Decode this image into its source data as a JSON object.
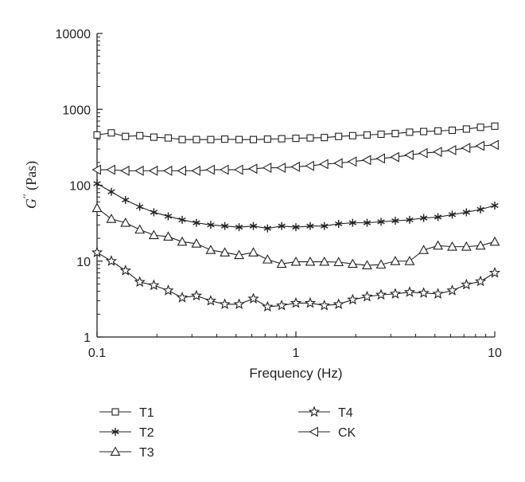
{
  "chart_data": {
    "type": "line",
    "xscale": "log",
    "yscale": "log",
    "xlabel": "Frequency (Hz)",
    "ylabel_main": "G",
    "ylabel_sup": "′′",
    "ylabel_unit": "(Pas)",
    "xlim": [
      0.1,
      10
    ],
    "ylim": [
      1,
      10000
    ],
    "x_ticks": [
      0.1,
      1,
      10
    ],
    "x_tick_labels": [
      "0.1",
      "1",
      "10"
    ],
    "y_ticks": [
      1,
      10,
      100,
      1000,
      10000
    ],
    "y_tick_labels": [
      "1",
      "10",
      "100",
      "1000",
      "10000"
    ],
    "grid": false,
    "legend_position": "bottom",
    "x": [
      0.1,
      0.118,
      0.139,
      0.164,
      0.193,
      0.228,
      0.268,
      0.316,
      0.373,
      0.439,
      0.518,
      0.611,
      0.72,
      0.848,
      1.0,
      1.18,
      1.39,
      1.64,
      1.93,
      2.28,
      2.68,
      3.16,
      3.73,
      4.39,
      5.18,
      6.11,
      7.2,
      8.48,
      10.0
    ],
    "series": [
      {
        "name": "T1",
        "marker": "square",
        "values": [
          460,
          490,
          440,
          450,
          430,
          420,
          400,
          400,
          400,
          405,
          400,
          400,
          405,
          410,
          415,
          420,
          425,
          440,
          450,
          460,
          470,
          480,
          500,
          510,
          520,
          530,
          550,
          580,
          600
        ]
      },
      {
        "name": "T2",
        "marker": "asterisk",
        "values": [
          105,
          82,
          64,
          52,
          44,
          39,
          35,
          32,
          30,
          29,
          28,
          29,
          27,
          29,
          28,
          29,
          29,
          31,
          32,
          32,
          33,
          34,
          35,
          37,
          38,
          41,
          44,
          48,
          54
        ]
      },
      {
        "name": "T3",
        "marker": "triangle-up",
        "values": [
          50,
          36,
          32,
          26,
          22,
          21,
          18,
          17,
          14,
          13,
          12,
          13,
          10.5,
          9.2,
          9.8,
          9.8,
          9.8,
          9.7,
          9.2,
          8.8,
          9.0,
          10,
          10,
          14,
          16,
          15.5,
          15.5,
          16,
          18
        ]
      },
      {
        "name": "T4",
        "marker": "star",
        "values": [
          13,
          10,
          7.5,
          5.3,
          4.8,
          4.1,
          3.3,
          3.5,
          3.0,
          2.7,
          2.7,
          3.2,
          2.5,
          2.6,
          2.8,
          2.8,
          2.6,
          2.7,
          3.1,
          3.4,
          3.6,
          3.7,
          3.9,
          3.8,
          3.7,
          4.1,
          4.9,
          5.4,
          7.0
        ]
      },
      {
        "name": "CK",
        "marker": "triangle-left",
        "values": [
          160,
          160,
          155,
          155,
          155,
          155,
          155,
          155,
          160,
          160,
          160,
          165,
          170,
          170,
          175,
          180,
          190,
          195,
          205,
          215,
          225,
          235,
          250,
          265,
          275,
          290,
          310,
          330,
          340
        ]
      }
    ],
    "legend": {
      "left_column": [
        "T1",
        "T2",
        "T3"
      ],
      "right_column": [
        "T4",
        "CK"
      ]
    }
  }
}
